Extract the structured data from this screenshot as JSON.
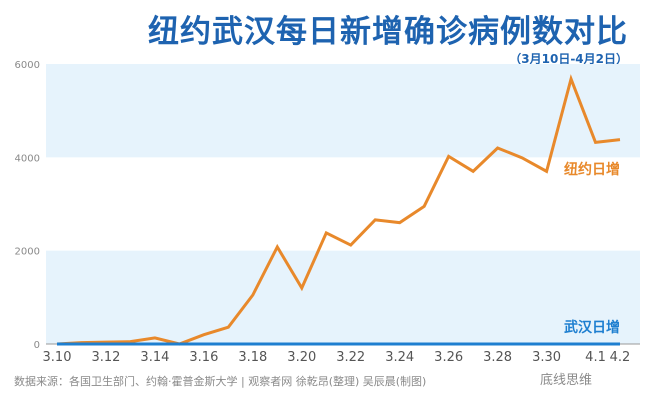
{
  "chart_data": {
    "type": "line",
    "title": "纽约武汉每日新增确诊病例数对比",
    "subtitle": "（3月10日-4月2日）",
    "x": [
      "3.10",
      "3.11",
      "3.12",
      "3.13",
      "3.14",
      "3.15",
      "3.16",
      "3.17",
      "3.18",
      "3.19",
      "3.20",
      "3.21",
      "3.22",
      "3.23",
      "3.24",
      "3.25",
      "3.26",
      "3.27",
      "3.28",
      "3.29",
      "3.30",
      "3.31",
      "4.1",
      "4.2"
    ],
    "xticks": [
      "3.10",
      "3.12",
      "3.14",
      "3.16",
      "3.18",
      "3.20",
      "3.22",
      "3.24",
      "3.26",
      "3.28",
      "3.30",
      "4.1",
      "4.2"
    ],
    "yticks": [
      "0",
      "2000",
      "4000",
      "6000"
    ],
    "ylim": [
      0,
      6000
    ],
    "series": [
      {
        "name": "纽约日增",
        "color": "#e8892b",
        "values": [
          0,
          30,
          40,
          50,
          130,
          0,
          200,
          360,
          1050,
          2080,
          1200,
          2380,
          2120,
          2660,
          2600,
          2950,
          4020,
          3700,
          4200,
          3990,
          3700,
          5680,
          4320,
          4380
        ]
      },
      {
        "name": "武汉日增",
        "color": "#1e7fd0",
        "values": [
          0,
          0,
          0,
          0,
          0,
          0,
          0,
          0,
          0,
          0,
          0,
          0,
          0,
          0,
          0,
          0,
          0,
          0,
          0,
          0,
          0,
          0,
          0,
          0
        ]
      }
    ],
    "band_color": "#e6f3fc"
  },
  "footer": {
    "source": "数据来源：各国卫生部门、约翰·霍普金斯大学 | 观察者网 徐乾昂(整理) 吴辰晨(制图)",
    "brand": "底线思维"
  }
}
